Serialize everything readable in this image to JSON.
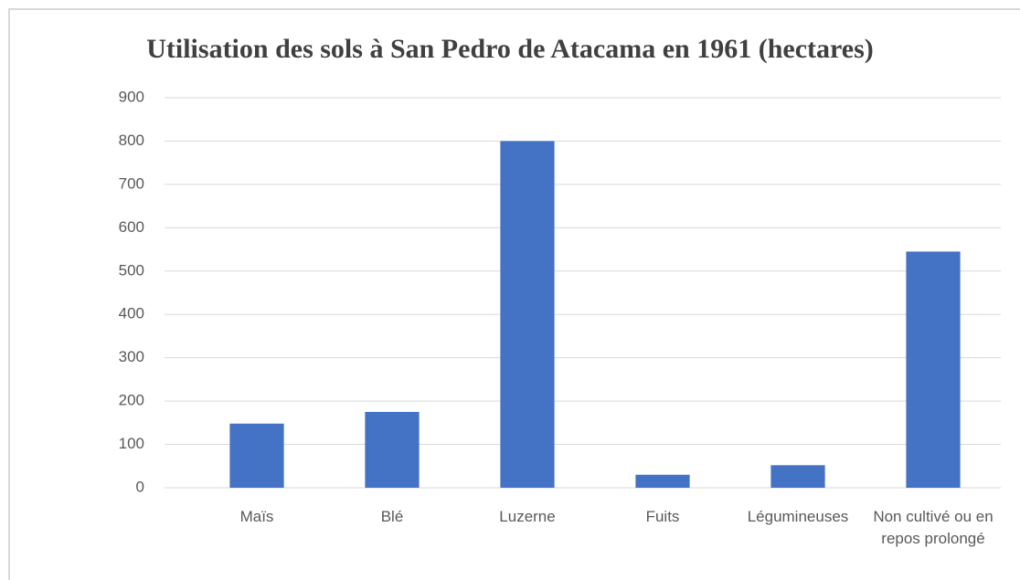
{
  "chart_data": {
    "type": "bar",
    "title": "Utilisation des sols à San Pedro de Atacama en 1961 (hectares)",
    "categories": [
      "Maïs",
      "Blé",
      "Luzerne",
      "Fuits",
      "Légumineuses",
      "Non cultivé ou en repos prolongé"
    ],
    "values": [
      148,
      175,
      800,
      30,
      52,
      545
    ],
    "color": "#4472c4",
    "ylim": [
      0,
      900
    ],
    "yticks": [
      0,
      100,
      200,
      300,
      400,
      500,
      600,
      700,
      800,
      900
    ],
    "grid": true
  }
}
